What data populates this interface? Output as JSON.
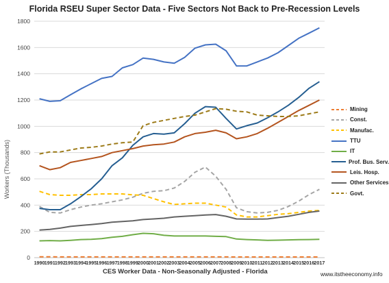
{
  "title": "Florida RSEU Super Sector Data - Five Sectors Not Back to Pre-Recession Levels",
  "footer": "www.itstheeconomy.info",
  "chart_data": {
    "type": "line",
    "title": "Florida RSEU Super Sector Data - Five Sectors Not Back to Pre-Recession Levels",
    "xlabel": "CES Worker Data - Non-Seasonally Adjusted - Florida",
    "ylabel": "Workers (Thousands)",
    "ylim": [
      0,
      1800
    ],
    "yticks": [
      "0",
      "200",
      "400",
      "600",
      "800",
      "1000",
      "1200",
      "1400",
      "1600",
      "1800"
    ],
    "grid": true,
    "legend_position": "right",
    "x": [
      "1990",
      "1991",
      "1992",
      "1993",
      "1994",
      "1995",
      "1996",
      "1997",
      "1998",
      "1999",
      "2000",
      "2001",
      "2002",
      "2003",
      "2004",
      "2005",
      "2006",
      "2007",
      "2008",
      "2009",
      "2010",
      "2011",
      "2012",
      "2013",
      "2014",
      "2015",
      "2016",
      "2017"
    ],
    "series": [
      {
        "name": "Mining",
        "color": "#ed7d31",
        "dash": "6,4",
        "width": 2,
        "values": [
          7,
          7,
          6,
          6,
          6,
          6,
          6,
          6,
          6,
          6,
          6,
          6,
          6,
          6,
          6,
          6,
          6,
          6,
          6,
          5,
          5,
          5,
          5,
          5,
          5,
          5,
          5,
          5
        ]
      },
      {
        "name": "Const.",
        "color": "#a5a5a5",
        "dash": "6,4",
        "width": 2,
        "values": [
          390,
          345,
          340,
          365,
          385,
          400,
          410,
          425,
          440,
          460,
          490,
          505,
          510,
          530,
          580,
          650,
          690,
          620,
          520,
          380,
          350,
          340,
          345,
          360,
          390,
          430,
          480,
          520
        ]
      },
      {
        "name": "Manufac.",
        "color": "#ffc000",
        "dash": "6,4",
        "width": 2,
        "values": [
          505,
          480,
          475,
          475,
          480,
          480,
          485,
          485,
          485,
          478,
          475,
          450,
          425,
          405,
          410,
          415,
          415,
          400,
          385,
          325,
          310,
          310,
          320,
          330,
          335,
          345,
          355,
          360
        ]
      },
      {
        "name": "TTU",
        "color": "#4472c4",
        "dash": "",
        "width": 2,
        "values": [
          1210,
          1190,
          1195,
          1240,
          1285,
          1325,
          1365,
          1380,
          1445,
          1470,
          1520,
          1510,
          1490,
          1480,
          1525,
          1595,
          1620,
          1625,
          1575,
          1460,
          1460,
          1490,
          1520,
          1560,
          1615,
          1670,
          1710,
          1750
        ]
      },
      {
        "name": "IT",
        "color": "#70ad47",
        "dash": "",
        "width": 2,
        "values": [
          128,
          130,
          128,
          132,
          138,
          140,
          145,
          155,
          162,
          175,
          185,
          182,
          170,
          165,
          165,
          165,
          165,
          162,
          160,
          142,
          138,
          135,
          132,
          133,
          135,
          137,
          138,
          140
        ]
      },
      {
        "name": "Prof. Bus. Serv.",
        "color": "#255e91",
        "dash": "",
        "width": 2,
        "values": [
          375,
          365,
          365,
          410,
          465,
          525,
          600,
          700,
          760,
          855,
          920,
          945,
          940,
          950,
          1020,
          1100,
          1150,
          1145,
          1060,
          980,
          1005,
          1025,
          1065,
          1110,
          1160,
          1220,
          1290,
          1340
        ]
      },
      {
        "name": "Leis. Hosp.",
        "color": "#b4541e",
        "dash": "",
        "width": 2,
        "values": [
          700,
          670,
          685,
          725,
          740,
          755,
          770,
          800,
          815,
          830,
          850,
          860,
          865,
          880,
          920,
          945,
          955,
          970,
          950,
          905,
          920,
          945,
          985,
          1030,
          1075,
          1120,
          1160,
          1200
        ]
      },
      {
        "name": "Other Services",
        "color": "#636363",
        "dash": "",
        "width": 2,
        "values": [
          210,
          215,
          225,
          238,
          245,
          252,
          260,
          270,
          275,
          280,
          290,
          295,
          300,
          310,
          315,
          320,
          325,
          328,
          315,
          295,
          293,
          293,
          295,
          305,
          315,
          330,
          345,
          355
        ]
      },
      {
        "name": "Govt.",
        "color": "#9c7a17",
        "dash": "6,4",
        "width": 2,
        "values": [
          790,
          805,
          805,
          820,
          835,
          840,
          850,
          865,
          875,
          880,
          1005,
          1030,
          1045,
          1060,
          1075,
          1085,
          1110,
          1135,
          1130,
          1115,
          1110,
          1085,
          1080,
          1075,
          1075,
          1080,
          1095,
          1110
        ]
      }
    ]
  }
}
